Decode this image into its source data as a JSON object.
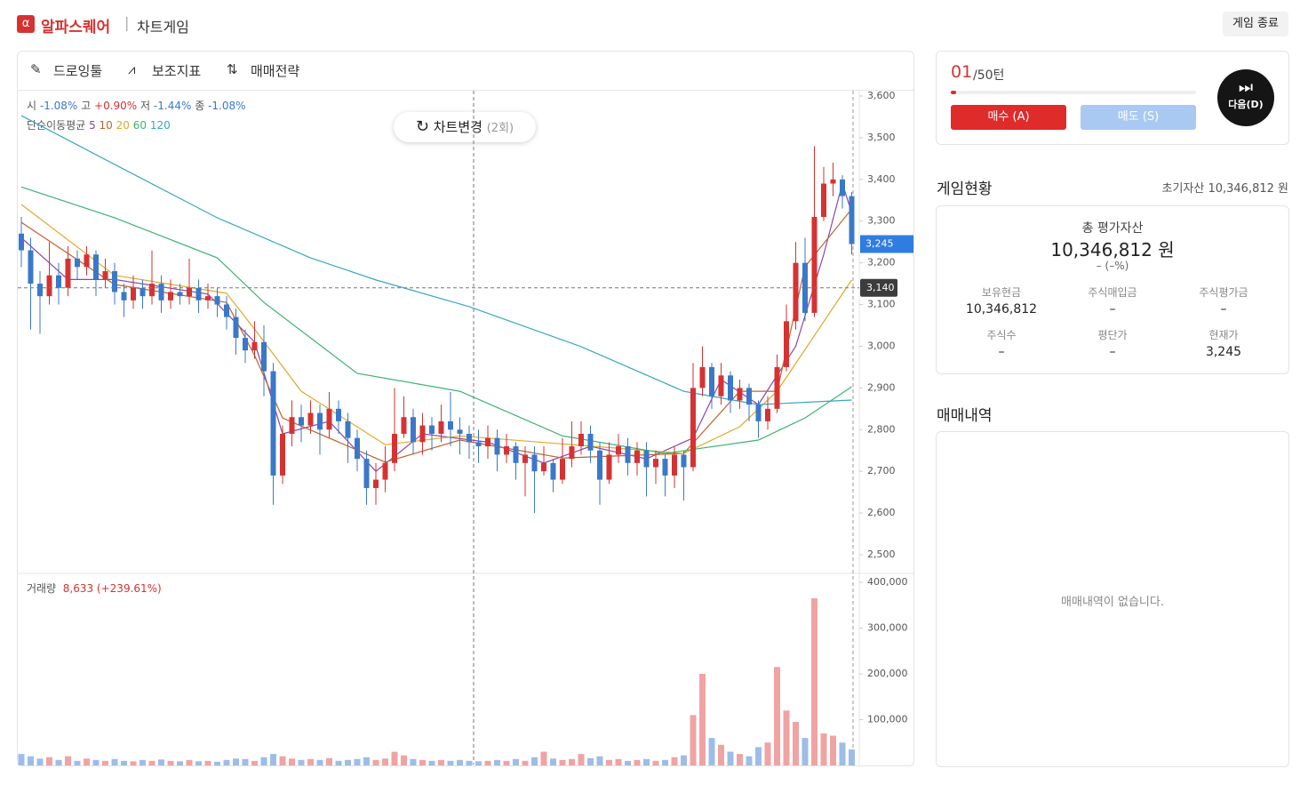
{
  "header": {
    "brand": "알파스퀘어",
    "section": "차트게임",
    "end_button": "게임 종료"
  },
  "toolbar": {
    "items": [
      "드로잉툴",
      "보조지표",
      "매매전략"
    ],
    "change_chart": "차트변경",
    "change_count": "(2회)"
  },
  "chart_data": {
    "type": "candlestick",
    "ohlc_info": [
      {
        "label": "시",
        "value": "-1.08%"
      },
      {
        "label": "고",
        "value": "+0.90%"
      },
      {
        "label": "저",
        "value": "-1.44%"
      },
      {
        "label": "종",
        "value": "-1.08%"
      }
    ],
    "ma_title": "단순이동평균",
    "up_color": "#d63232",
    "down_color": "#3a78c9",
    "volume_up_color": "#f0a3a3",
    "volume_down_color": "#9dbde8",
    "open": [
      3270,
      3230,
      3150,
      3120,
      3170,
      3140,
      3210,
      3190,
      3220,
      3160,
      3180,
      3130,
      3110,
      3140,
      3120,
      3150,
      3110,
      3130,
      3120,
      3140,
      3110,
      3120,
      3100,
      3070,
      3020,
      2990,
      3010,
      2940,
      2690,
      2790,
      2830,
      2810,
      2840,
      2800,
      2850,
      2820,
      2780,
      2730,
      2660,
      2680,
      2720,
      2790,
      2830,
      2770,
      2810,
      2790,
      2820,
      2800,
      2790,
      2770,
      2760,
      2780,
      2740,
      2760,
      2720,
      2740,
      2700,
      2720,
      2680,
      2730,
      2760,
      2790,
      2750,
      2680,
      2740,
      2760,
      2720,
      2750,
      2710,
      2730,
      2690,
      2740,
      2710,
      2900,
      2950,
      2880,
      2930,
      2870,
      2900,
      2860,
      2820,
      2850,
      2950,
      3060,
      3200,
      3080,
      3310,
      3390,
      3400,
      3360
    ],
    "high": [
      3310,
      3260,
      3180,
      3250,
      3200,
      3240,
      3230,
      3240,
      3230,
      3210,
      3200,
      3150,
      3170,
      3160,
      3230,
      3170,
      3160,
      3150,
      3210,
      3160,
      3150,
      3140,
      3120,
      3090,
      3040,
      3060,
      3050,
      2960,
      2810,
      2870,
      2860,
      2870,
      2860,
      2890,
      2870,
      2840,
      2800,
      2750,
      2720,
      2760,
      2900,
      2880,
      2850,
      2840,
      2830,
      2860,
      2890,
      2830,
      2810,
      2800,
      2810,
      2800,
      2790,
      2770,
      2760,
      2760,
      2760,
      2730,
      2780,
      2820,
      2820,
      2810,
      2770,
      2770,
      2790,
      2780,
      2770,
      2770,
      2750,
      2740,
      2760,
      2750,
      2960,
      3000,
      2960,
      2960,
      2940,
      2920,
      2910,
      2870,
      2880,
      2980,
      3100,
      3250,
      3260,
      3480,
      3430,
      3440,
      3410,
      3370
    ],
    "low": [
      3190,
      3040,
      3030,
      3100,
      3100,
      3120,
      3160,
      3170,
      3120,
      3140,
      3100,
      3070,
      3090,
      3090,
      3100,
      3080,
      3090,
      3100,
      3100,
      3080,
      3090,
      3070,
      3040,
      2980,
      2960,
      2970,
      2880,
      2620,
      2670,
      2760,
      2770,
      2790,
      2740,
      2780,
      2790,
      2720,
      2700,
      2620,
      2620,
      2650,
      2700,
      2780,
      2740,
      2740,
      2750,
      2770,
      2760,
      2740,
      2730,
      2720,
      2730,
      2700,
      2720,
      2680,
      2640,
      2600,
      2690,
      2650,
      2670,
      2710,
      2740,
      2720,
      2620,
      2670,
      2720,
      2690,
      2690,
      2640,
      2670,
      2640,
      2660,
      2630,
      2700,
      2880,
      2850,
      2860,
      2840,
      2850,
      2820,
      2780,
      2800,
      2840,
      2940,
      3040,
      3060,
      3070,
      3300,
      3360,
      3330,
      3220
    ],
    "close": [
      3230,
      3150,
      3120,
      3170,
      3140,
      3210,
      3190,
      3220,
      3160,
      3180,
      3130,
      3110,
      3140,
      3120,
      3150,
      3110,
      3130,
      3120,
      3140,
      3110,
      3120,
      3100,
      3070,
      3020,
      2990,
      3010,
      2940,
      2690,
      2790,
      2830,
      2810,
      2840,
      2800,
      2850,
      2820,
      2780,
      2730,
      2660,
      2680,
      2720,
      2790,
      2830,
      2770,
      2810,
      2790,
      2820,
      2800,
      2790,
      2770,
      2760,
      2780,
      2740,
      2760,
      2720,
      2740,
      2700,
      2720,
      2680,
      2730,
      2760,
      2790,
      2750,
      2680,
      2740,
      2760,
      2720,
      2750,
      2710,
      2730,
      2690,
      2740,
      2710,
      2900,
      2950,
      2880,
      2930,
      2870,
      2900,
      2860,
      2820,
      2850,
      2950,
      3060,
      3200,
      3080,
      3310,
      3390,
      3400,
      3360,
      3245
    ],
    "volume": [
      25000,
      20000,
      15000,
      18000,
      12000,
      20000,
      10000,
      15000,
      12000,
      10000,
      14000,
      10000,
      9000,
      12000,
      10000,
      13000,
      10000,
      9000,
      12000,
      9000,
      10000,
      8000,
      12000,
      15000,
      14000,
      10000,
      18000,
      25000,
      20000,
      15000,
      12000,
      14000,
      12000,
      16000,
      10000,
      12000,
      14000,
      18000,
      12000,
      15000,
      30000,
      22000,
      14000,
      12000,
      10000,
      12000,
      10000,
      12000,
      10000,
      9000,
      10000,
      12000,
      10000,
      14000,
      10000,
      18000,
      30000,
      15000,
      12000,
      14000,
      25000,
      16000,
      20000,
      12000,
      14000,
      10000,
      12000,
      14000,
      10000,
      12000,
      18000,
      22000,
      110000,
      200000,
      60000,
      45000,
      30000,
      25000,
      20000,
      40000,
      50000,
      215000,
      120000,
      95000,
      60000,
      365000,
      70000,
      65000,
      50000,
      35000
    ],
    "series": [
      {
        "name": "5",
        "color": "#8e44ad",
        "x": [
          0,
          5,
          10,
          20,
          25,
          28,
          33,
          38,
          43,
          50,
          56,
          61,
          67,
          72,
          75,
          79,
          83,
          86,
          88,
          89
        ],
        "values": [
          3260,
          3160,
          3160,
          3125,
          3010,
          2790,
          2820,
          2700,
          2790,
          2770,
          2720,
          2760,
          2730,
          2780,
          2920,
          2860,
          3000,
          3220,
          3390,
          3320
        ]
      },
      {
        "name": "10",
        "color": "#c0622d",
        "x": [
          0,
          10,
          22,
          25,
          28,
          39,
          47,
          58,
          71,
          77,
          81,
          84,
          89
        ],
        "values": [
          3297,
          3148,
          3105,
          2978,
          2828,
          2722,
          2775,
          2732,
          2743,
          2892,
          2892,
          3191,
          3329
        ]
      },
      {
        "name": "20",
        "color": "#e0a92a",
        "x": [
          0,
          10,
          22,
          25,
          30,
          39,
          47,
          59,
          71,
          77,
          81,
          89
        ],
        "values": [
          3340,
          3170,
          3127,
          3041,
          2892,
          2764,
          2785,
          2764,
          2743,
          2807,
          2892,
          3159
        ]
      },
      {
        "name": "60",
        "color": "#3cb371",
        "x": [
          0,
          10,
          21,
          26,
          36,
          47,
          58,
          69,
          79,
          84,
          89
        ],
        "values": [
          3382,
          3308,
          3212,
          3105,
          2935,
          2892,
          2785,
          2743,
          2775,
          2828,
          2903
        ]
      },
      {
        "name": "120",
        "color": "#3aa6c4",
        "x": [
          0,
          10,
          21,
          31,
          38,
          48,
          60,
          71,
          79,
          89
        ],
        "values": [
          3553,
          3436,
          3308,
          3212,
          3159,
          3095,
          2999,
          2892,
          2860,
          2871
        ]
      }
    ],
    "ylim": [
      2500,
      3600
    ],
    "yticks": [
      {
        "value": 3600,
        "label": "3,600"
      },
      {
        "value": 3500,
        "label": "3,500"
      },
      {
        "value": 3400,
        "label": "3,400"
      },
      {
        "value": 3300,
        "label": "3,300"
      },
      {
        "value": 3200,
        "label": "3,200"
      },
      {
        "value": 3100,
        "label": "3,100"
      },
      {
        "value": 3000,
        "label": "3,000"
      },
      {
        "value": 2900,
        "label": "2,900"
      },
      {
        "value": 2800,
        "label": "2,800"
      },
      {
        "value": 2700,
        "label": "2,700"
      },
      {
        "value": 2600,
        "label": "2,600"
      },
      {
        "value": 2500,
        "label": "2,500"
      }
    ],
    "current_price": {
      "value": 3245,
      "label": "3,245"
    },
    "crosshair_price": {
      "value": 3140,
      "label": "3,140"
    },
    "volume_title": "거래량",
    "volume_info": "8,633 (+239.61%)",
    "volume_ylim": [
      0,
      400000
    ],
    "volume_ticks": [
      {
        "value": 400000,
        "label": "400,000"
      },
      {
        "value": 300000,
        "label": "300,000"
      },
      {
        "value": 200000,
        "label": "200,000"
      },
      {
        "value": 100000,
        "label": "100,000"
      }
    ]
  },
  "turn": {
    "current": "01",
    "total": "/50턴",
    "buy": "매수 (A)",
    "sell": "매도 (S)",
    "next": "다음(D)"
  },
  "status": {
    "title": "게임현황",
    "initial_label": "초기자산",
    "initial_value": "10,346,812 원",
    "total_label": "총 평가자산",
    "total_value": "10,346,812 원",
    "total_change": "– (–%)",
    "items": [
      {
        "label": "보유현금",
        "value": "10,346,812"
      },
      {
        "label": "주식매입금",
        "value": "–"
      },
      {
        "label": "주식평가금",
        "value": "–"
      },
      {
        "label": "주식수",
        "value": "–"
      },
      {
        "label": "평단가",
        "value": "–"
      },
      {
        "label": "현재가",
        "value": "3,245"
      }
    ]
  },
  "history": {
    "title": "매매내역",
    "empty": "매매내역이 없습니다."
  }
}
